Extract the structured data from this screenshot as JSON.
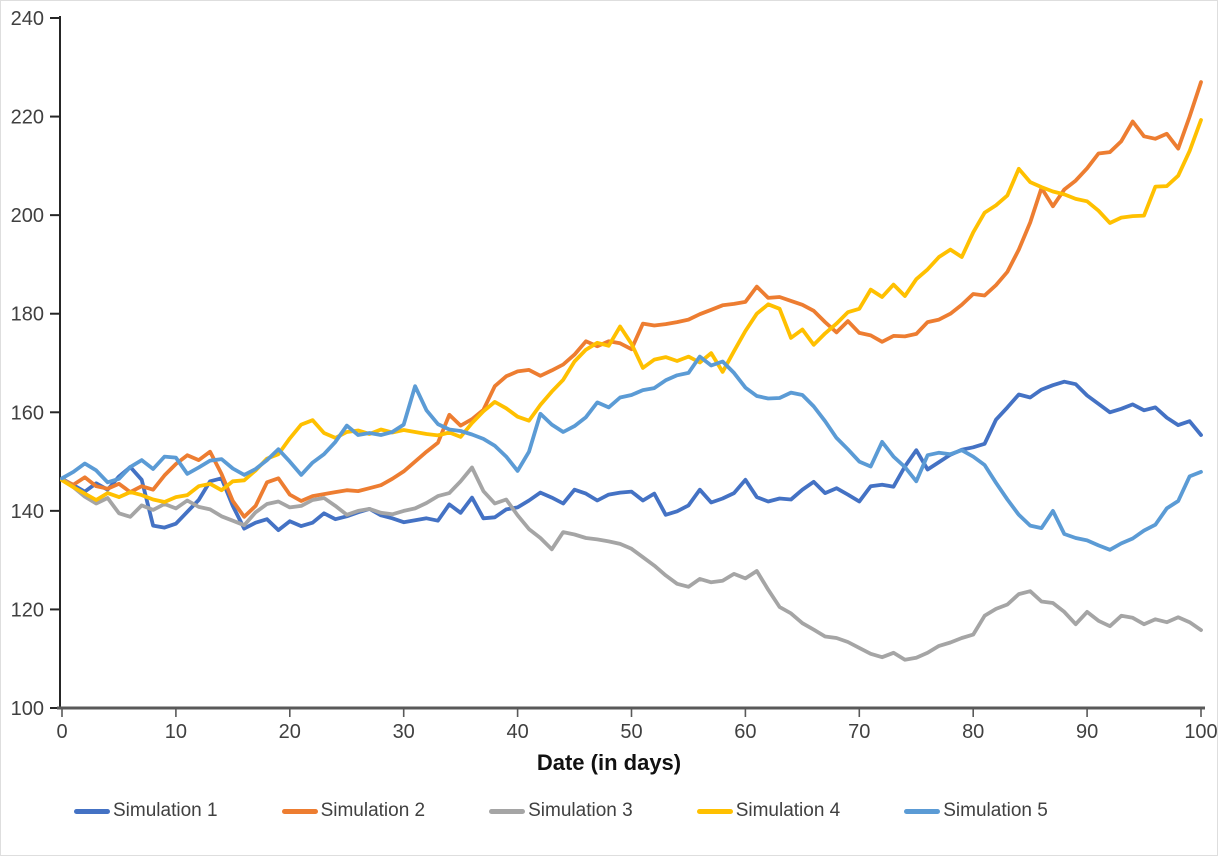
{
  "chart_data": {
    "type": "line",
    "title": "",
    "xlabel": "Date (in days)",
    "ylabel": "",
    "xlim": [
      0,
      100
    ],
    "ylim": [
      100,
      240
    ],
    "x_ticks": [
      0,
      10,
      20,
      30,
      40,
      50,
      60,
      70,
      80,
      90,
      100
    ],
    "y_ticks": [
      100,
      120,
      140,
      160,
      180,
      200,
      220,
      240
    ],
    "grid": false,
    "legend_position": "bottom",
    "x_step": 1,
    "series": [
      {
        "name": "Simulation 1",
        "color": "#4472C4",
        "values": [
          146.5,
          145.2,
          143.9,
          145.6,
          144.3,
          147.0,
          148.9,
          146.3,
          137.0,
          136.6,
          137.4,
          139.8,
          142.2,
          146.0,
          146.6,
          141.0,
          136.4,
          137.6,
          138.3,
          136.1,
          137.9,
          136.9,
          137.6,
          139.5,
          138.3,
          138.9,
          139.7,
          140.4,
          139.1,
          138.5,
          137.7,
          138.1,
          138.5,
          138.0,
          141.3,
          139.6,
          142.7,
          138.5,
          138.7,
          140.3,
          140.7,
          142.1,
          143.7,
          142.7,
          141.5,
          144.3,
          143.5,
          142.1,
          143.3,
          143.7,
          143.9,
          142.1,
          143.5,
          139.2,
          139.9,
          141.1,
          144.3,
          141.7,
          142.5,
          143.6,
          146.3,
          142.8,
          141.9,
          142.5,
          142.3,
          144.3,
          145.9,
          143.6,
          144.6,
          143.3,
          141.9,
          145.0,
          145.3,
          144.9,
          149.0,
          152.3,
          148.4,
          149.9,
          151.4,
          152.4,
          152.9,
          153.6,
          158.5,
          161.0,
          163.6,
          163.0,
          164.6,
          165.5,
          166.2,
          165.7,
          163.4,
          161.7,
          160.0,
          160.7,
          161.6,
          160.4,
          161.0,
          158.9,
          157.4,
          158.2,
          155.4
        ]
      },
      {
        "name": "Simulation 2",
        "color": "#ED7D31",
        "values": [
          146.3,
          145.3,
          146.8,
          145.0,
          144.5,
          145.5,
          143.8,
          145.0,
          144.3,
          147.2,
          149.5,
          151.3,
          150.3,
          152.0,
          147.5,
          142.0,
          138.8,
          141.0,
          145.8,
          146.6,
          143.3,
          142.0,
          143.0,
          143.4,
          143.8,
          144.2,
          144.0,
          144.6,
          145.2,
          146.5,
          148.0,
          150.0,
          152.0,
          153.8,
          159.5,
          157.3,
          158.6,
          160.5,
          165.3,
          167.3,
          168.3,
          168.6,
          167.4,
          168.5,
          169.7,
          171.7,
          174.4,
          173.4,
          174.4,
          174.0,
          172.8,
          178.0,
          177.6,
          177.9,
          178.3,
          178.8,
          179.9,
          180.8,
          181.7,
          182.0,
          182.4,
          185.5,
          183.2,
          183.4,
          182.6,
          181.8,
          180.6,
          178.3,
          176.2,
          178.5,
          176.1,
          175.6,
          174.3,
          175.5,
          175.4,
          175.9,
          178.3,
          178.8,
          180.0,
          181.8,
          184.0,
          183.7,
          185.8,
          188.5,
          193.0,
          198.5,
          205.5,
          201.8,
          205.2,
          207.0,
          209.5,
          212.5,
          212.8,
          215.0,
          219.0,
          216.0,
          215.5,
          216.5,
          213.5,
          220.0,
          227.0
        ]
      },
      {
        "name": "Simulation 3",
        "color": "#A5A5A5",
        "values": [
          146.4,
          144.8,
          142.9,
          141.5,
          142.6,
          139.5,
          138.8,
          141.1,
          140.2,
          141.4,
          140.5,
          142.1,
          140.8,
          140.3,
          138.9,
          138.0,
          137.1,
          139.7,
          141.4,
          141.9,
          140.7,
          141.0,
          142.2,
          142.6,
          141.0,
          139.2,
          140.0,
          140.4,
          139.6,
          139.3,
          140.0,
          140.5,
          141.6,
          143.0,
          143.6,
          146.0,
          148.8,
          144.0,
          141.5,
          142.3,
          139.1,
          136.3,
          134.5,
          132.2,
          135.7,
          135.2,
          134.5,
          134.2,
          133.8,
          133.3,
          132.3,
          130.6,
          128.9,
          126.9,
          125.2,
          124.6,
          126.2,
          125.5,
          125.8,
          127.2,
          126.3,
          127.8,
          124.0,
          120.5,
          119.2,
          117.2,
          115.9,
          114.5,
          114.2,
          113.4,
          112.2,
          111.0,
          110.3,
          111.2,
          109.8,
          110.2,
          111.2,
          112.6,
          113.3,
          114.2,
          114.9,
          118.7,
          120.1,
          121.0,
          123.1,
          123.7,
          121.6,
          121.3,
          119.5,
          117.0,
          119.5,
          117.7,
          116.6,
          118.7,
          118.3,
          117.0,
          118.0,
          117.4,
          118.4,
          117.4,
          115.8
        ]
      },
      {
        "name": "Simulation 4",
        "color": "#FFC000",
        "values": [
          146.2,
          144.8,
          143.5,
          142.2,
          143.6,
          142.8,
          143.8,
          143.2,
          142.3,
          141.8,
          142.8,
          143.2,
          145.0,
          145.5,
          144.2,
          146.0,
          146.2,
          148.2,
          150.6,
          151.5,
          154.7,
          157.5,
          158.4,
          155.8,
          154.8,
          156.0,
          156.3,
          155.6,
          156.5,
          155.9,
          156.4,
          156.0,
          155.6,
          155.3,
          155.9,
          155.0,
          157.8,
          160.2,
          162.1,
          160.8,
          159.1,
          158.3,
          161.5,
          164.2,
          166.6,
          170.3,
          172.7,
          174.1,
          173.5,
          177.4,
          173.9,
          169.0,
          170.7,
          171.2,
          170.4,
          171.3,
          170.1,
          172.0,
          168.2,
          172.4,
          176.5,
          180.0,
          181.9,
          181.0,
          175.1,
          176.8,
          173.7,
          176.0,
          178.0,
          180.3,
          181.0,
          184.9,
          183.4,
          185.9,
          183.6,
          187.0,
          189.0,
          191.5,
          193.0,
          191.5,
          196.5,
          200.5,
          202.0,
          204.0,
          209.4,
          206.7,
          205.7,
          204.8,
          204.2,
          203.3,
          202.8,
          200.9,
          198.4,
          199.5,
          199.8,
          199.9,
          205.8,
          205.9,
          208.0,
          213.0,
          219.3
        ]
      },
      {
        "name": "Simulation 5",
        "color": "#5B9BD5",
        "values": [
          146.6,
          147.9,
          149.6,
          148.2,
          145.8,
          146.5,
          148.9,
          150.3,
          148.5,
          151.0,
          150.8,
          147.5,
          148.8,
          150.2,
          150.5,
          148.6,
          147.3,
          148.5,
          150.3,
          152.5,
          150.0,
          147.3,
          149.8,
          151.5,
          154.0,
          157.3,
          155.4,
          155.8,
          155.4,
          156.0,
          157.5,
          165.3,
          160.4,
          157.6,
          156.5,
          156.2,
          155.5,
          154.6,
          153.2,
          151.0,
          148.1,
          152.0,
          159.7,
          157.5,
          156.0,
          157.2,
          159.0,
          162.0,
          161.0,
          163.0,
          163.5,
          164.5,
          164.9,
          166.5,
          167.5,
          168.0,
          171.3,
          169.5,
          170.3,
          168.0,
          165.0,
          163.3,
          162.8,
          162.9,
          164.0,
          163.5,
          161.2,
          158.2,
          154.8,
          152.5,
          150.0,
          149.0,
          154.0,
          151.0,
          148.9,
          146.0,
          151.3,
          151.8,
          151.5,
          152.3,
          151.0,
          149.3,
          145.7,
          142.3,
          139.2,
          137.0,
          136.5,
          140.0,
          135.3,
          134.5,
          134.0,
          133.0,
          132.1,
          133.4,
          134.4,
          136.0,
          137.2,
          140.5,
          142.0,
          147.0,
          147.9
        ]
      }
    ]
  },
  "colors": {
    "background": "#ffffff",
    "y_axis": "#262626",
    "x_axis": "#595959",
    "tick_text": "#404040",
    "title_text": "#111111"
  }
}
